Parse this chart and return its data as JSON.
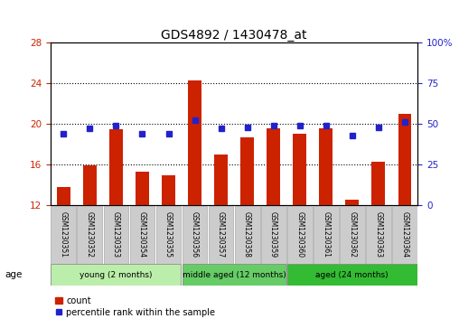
{
  "title": "GDS4892 / 1430478_at",
  "samples": [
    "GSM1230351",
    "GSM1230352",
    "GSM1230353",
    "GSM1230354",
    "GSM1230355",
    "GSM1230356",
    "GSM1230357",
    "GSM1230358",
    "GSM1230359",
    "GSM1230360",
    "GSM1230361",
    "GSM1230362",
    "GSM1230363",
    "GSM1230364"
  ],
  "counts": [
    13.8,
    15.9,
    19.5,
    15.3,
    14.9,
    24.3,
    17.0,
    18.7,
    19.6,
    19.0,
    19.6,
    12.5,
    16.3,
    21.0
  ],
  "percentiles": [
    44,
    47,
    49,
    44,
    44,
    52,
    47,
    48,
    49,
    49,
    49,
    43,
    48,
    51
  ],
  "ylim_left": [
    12,
    28
  ],
  "ylim_right": [
    0,
    100
  ],
  "yticks_left": [
    12,
    16,
    20,
    24,
    28
  ],
  "yticks_right": [
    0,
    25,
    50,
    75,
    100
  ],
  "ytick_right_labels": [
    "0",
    "25",
    "50",
    "75",
    "100%"
  ],
  "bar_color": "#cc2200",
  "dot_color": "#2222cc",
  "grid_color": "#000000",
  "bg_color": "#ffffff",
  "axis_label_color_left": "#cc2200",
  "axis_label_color_right": "#2222cc",
  "group_colors": [
    "#bbeeaa",
    "#66cc66",
    "#33bb33"
  ],
  "groups": [
    {
      "label": "young (2 months)",
      "start": 0,
      "end": 5
    },
    {
      "label": "middle aged (12 months)",
      "start": 5,
      "end": 9
    },
    {
      "label": "aged (24 months)",
      "start": 9,
      "end": 14
    }
  ],
  "age_label": "age",
  "legend_count_label": "count",
  "legend_percentile_label": "percentile rank within the sample",
  "bar_width": 0.5
}
